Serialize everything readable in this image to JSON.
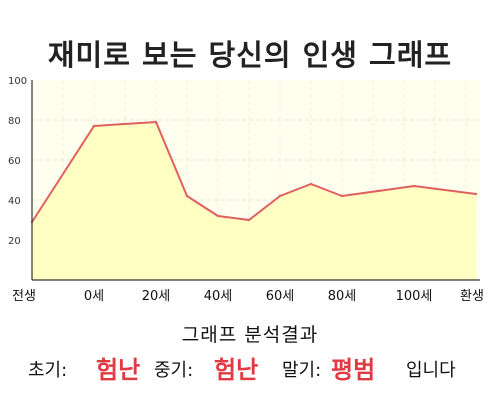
{
  "title": "재미로 보는 당신의 인생 그래프",
  "chart_data": {
    "type": "area",
    "x_categories": [
      "전생",
      "0세",
      "20세",
      "40세",
      "60세",
      "80세",
      "100세",
      "환생"
    ],
    "points": [
      {
        "x": "전생",
        "y": 29
      },
      {
        "x": "0세",
        "y": 77
      },
      {
        "x": "20세",
        "y": 79
      },
      {
        "x": "30세",
        "y": 42
      },
      {
        "x": "40세",
        "y": 32
      },
      {
        "x": "50세",
        "y": 30
      },
      {
        "x": "60세",
        "y": 42
      },
      {
        "x": "70세",
        "y": 48
      },
      {
        "x": "80세",
        "y": 42
      },
      {
        "x": "100세",
        "y": 47
      },
      {
        "x": "환생",
        "y": 43
      }
    ],
    "y_ticks": [
      "100",
      "80",
      "60",
      "40",
      "20"
    ],
    "ylim": [
      0,
      100
    ],
    "grid": true,
    "line_color": "#e06060",
    "fill_color": "#ffffc4",
    "plot_background": "#fffff0"
  },
  "result": {
    "heading": "그래프 분석결과",
    "early_label": "초기:",
    "early_value": "험난",
    "middle_label": "중기:",
    "middle_value": "험난",
    "late_label": "말기:",
    "late_value": "평범",
    "suffix": "입니다"
  },
  "colors": {
    "accent": "#e03a42",
    "text": "#111111"
  }
}
